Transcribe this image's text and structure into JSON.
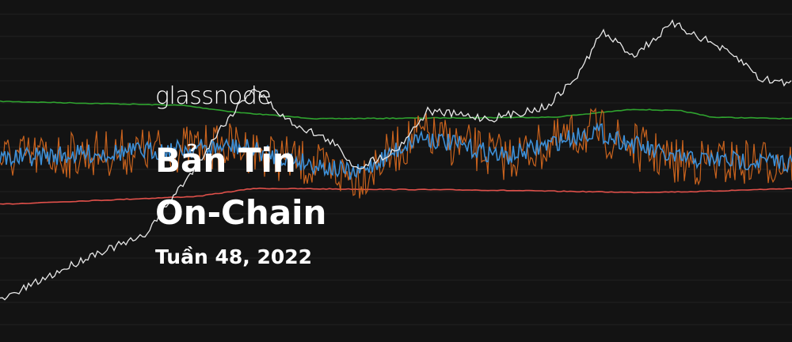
{
  "brand": "glassnode",
  "title_line_1": "Bản Tin",
  "title_line_2": "On-Chain",
  "subtitle": "Tuần 48, 2022"
}
